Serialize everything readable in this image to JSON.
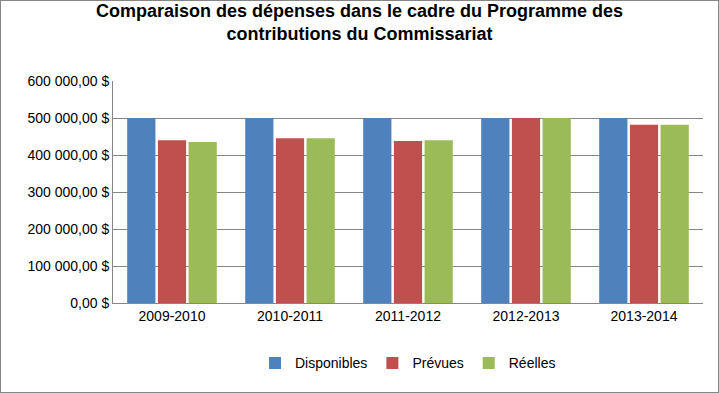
{
  "chart_data": {
    "type": "bar",
    "title": "Comparaison des dépenses dans le cadre du Programme des contributions du Commissariat",
    "categories": [
      "2009-2010",
      "2010-2011",
      "2011-2012",
      "2012-2013",
      "2013-2014"
    ],
    "series": [
      {
        "name": "Disponibles",
        "color": "#4F81BD",
        "values": [
          500000,
          500000,
          500000,
          500000,
          500000
        ]
      },
      {
        "name": "Prévues",
        "color": "#C0504D",
        "values": [
          440000,
          445000,
          438000,
          500000,
          482000
        ]
      },
      {
        "name": "Réelles",
        "color": "#9BBB59",
        "values": [
          435000,
          445000,
          440000,
          500000,
          482000
        ]
      }
    ],
    "ylim": [
      0,
      600000
    ],
    "yticks": [
      {
        "value": 0,
        "label": "0,00 $"
      },
      {
        "value": 100000,
        "label": "100 000,00 $"
      },
      {
        "value": 200000,
        "label": "200 000,00 $"
      },
      {
        "value": 300000,
        "label": "300 000,00 $"
      },
      {
        "value": 400000,
        "label": "400 000,00 $"
      },
      {
        "value": 500000,
        "label": "500 000,00 $"
      },
      {
        "value": 600000,
        "label": "600 000,00 $"
      }
    ],
    "grid": true,
    "legend": "bottom"
  }
}
